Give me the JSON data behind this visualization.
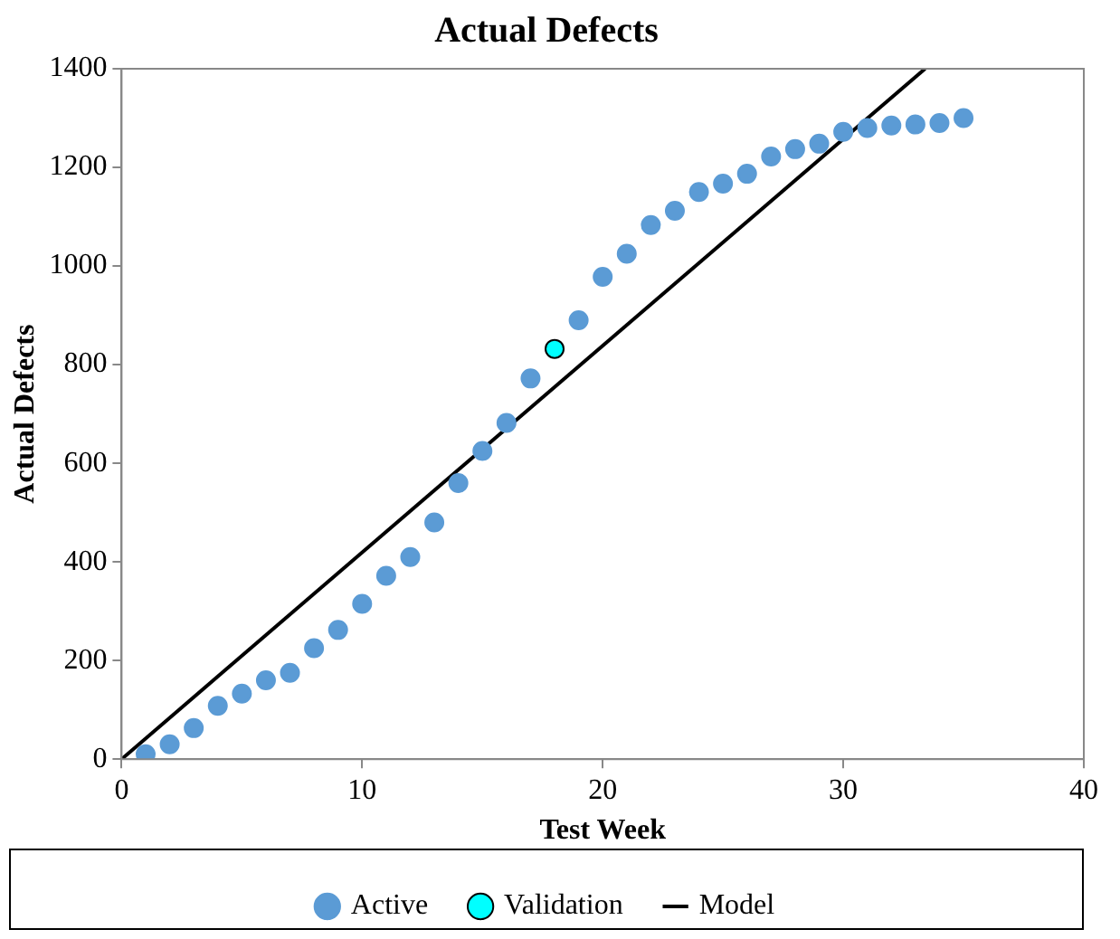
{
  "chart_data": {
    "type": "scatter",
    "title": "Actual Defects",
    "xlabel": "Test Week",
    "ylabel": "Actual Defects",
    "xlim": [
      0,
      40
    ],
    "xticks": [
      0,
      10,
      20,
      30,
      40
    ],
    "ylim": [
      0,
      1400
    ],
    "yticks": [
      0,
      200,
      400,
      600,
      800,
      1000,
      1200,
      1400
    ],
    "grid": false,
    "legend": "bottom",
    "marker": "circle",
    "series": [
      {
        "name": "Active",
        "type": "scatter",
        "color": "#5b9bd5",
        "x": [
          1,
          2,
          3,
          4,
          5,
          6,
          7,
          8,
          9,
          10,
          11,
          12,
          13,
          14,
          15,
          16,
          17,
          19,
          20,
          21,
          22,
          23,
          24,
          25,
          26,
          27,
          28,
          29,
          30,
          31,
          32,
          33,
          34,
          35
        ],
        "values": [
          10,
          30,
          63,
          108,
          133,
          160,
          175,
          225,
          262,
          315,
          372,
          410,
          480,
          560,
          625,
          682,
          772,
          890,
          978,
          1025,
          1083,
          1112,
          1150,
          1167,
          1187,
          1222,
          1237,
          1248,
          1272,
          1280,
          1285,
          1287,
          1290,
          1300
        ]
      },
      {
        "name": "Validation",
        "type": "scatter",
        "color": "#00ffff",
        "x": [
          18
        ],
        "values": [
          832
        ]
      },
      {
        "name": "Model",
        "type": "line",
        "color": "#000000",
        "marker": "none",
        "x": [
          0,
          33.4
        ],
        "values": [
          0,
          1400
        ]
      }
    ]
  }
}
